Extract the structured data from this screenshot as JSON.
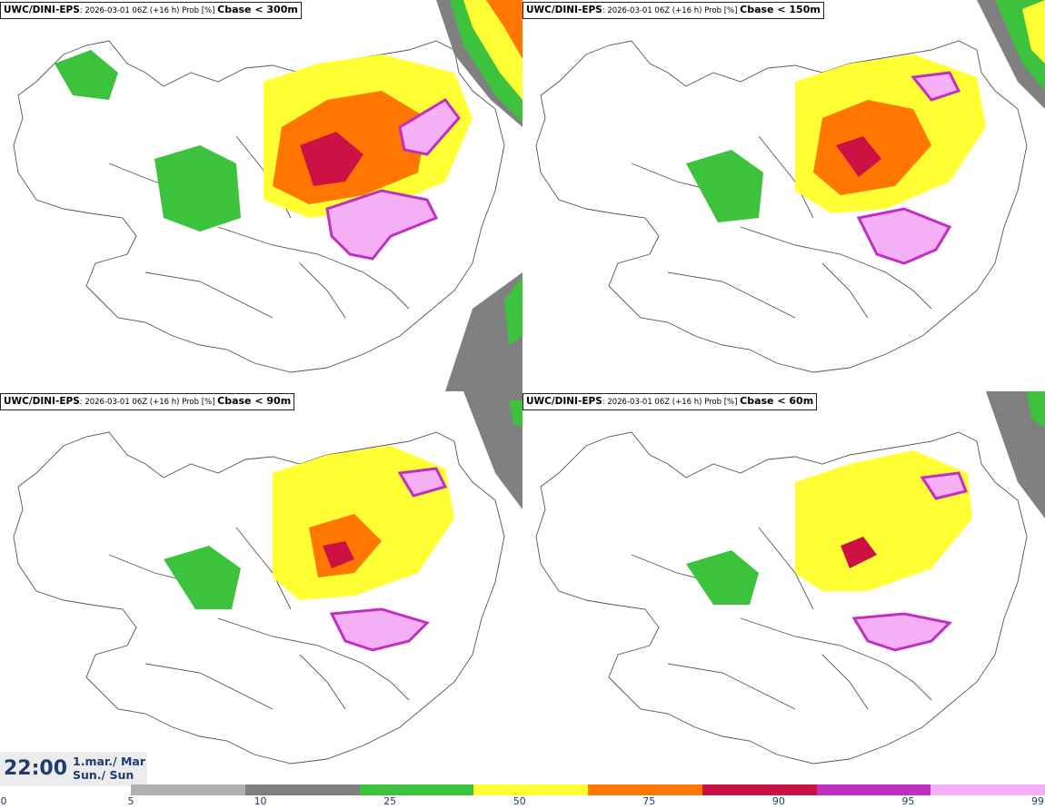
{
  "panels": [
    {
      "model": "UWC/DINI-EPS",
      "meta": ": 2026-03-01 06Z (+16 h) Prob [%] ",
      "threshold": "Cbase < 300m"
    },
    {
      "model": "UWC/DINI-EPS",
      "meta": ": 2026-03-01 06Z (+16 h) Prob [%] ",
      "threshold": "Cbase < 150m"
    },
    {
      "model": "UWC/DINI-EPS",
      "meta": ": 2026-03-01 06Z (+16 h) Prob [%] ",
      "threshold": "Cbase < 90m"
    },
    {
      "model": "UWC/DINI-EPS",
      "meta": ": 2026-03-01 06Z (+16 h) Prob [%] ",
      "threshold": "Cbase < 60m"
    }
  ],
  "time": {
    "clock": "22:00",
    "date_line1": "1.mar./ Mar",
    "date_line2": "Sun./ Sun"
  },
  "colorbar": {
    "ticks": [
      "0",
      "5",
      "10",
      "25",
      "50",
      "75",
      "90",
      "95",
      "99"
    ],
    "colors": [
      "#b0b0b0",
      "#808080",
      "#3cc23c",
      "#ffff33",
      "#ff7700",
      "#cc1144",
      "#c030c0",
      "#f5b0f5"
    ]
  },
  "legend_colors": {
    "light_gray": "#b0b0b0",
    "gray": "#808080",
    "green": "#3cc23c",
    "yellow": "#ffff33",
    "orange": "#ff7700",
    "red": "#cc1144",
    "magenta": "#c030c0",
    "pink": "#f5b0f5"
  }
}
